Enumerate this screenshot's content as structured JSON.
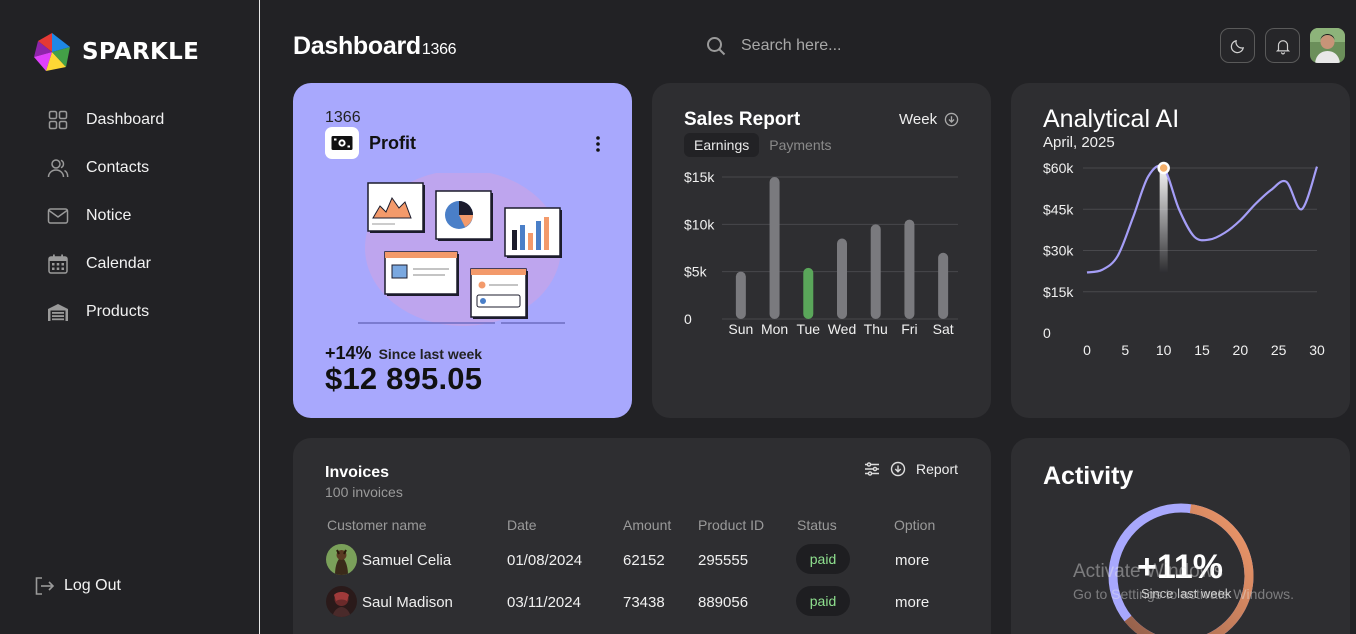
{
  "brand": {
    "name": "SPARKLE"
  },
  "sidebar": {
    "items": [
      {
        "label": "Dashboard",
        "icon": "grid-icon"
      },
      {
        "label": "Contacts",
        "icon": "users-icon"
      },
      {
        "label": "Notice",
        "icon": "mail-icon"
      },
      {
        "label": "Calendar",
        "icon": "calendar-icon"
      },
      {
        "label": "Products",
        "icon": "warehouse-icon"
      }
    ],
    "logout": "Log Out"
  },
  "header": {
    "title": "Dashboard",
    "title_code": "1366",
    "search_placeholder": "Search here..."
  },
  "profit": {
    "code": "1366",
    "title": "Profit",
    "change": "+14%",
    "change_label": "Since last week",
    "amount": "$12 895.05",
    "bg_color": "#a8a8fd"
  },
  "sales": {
    "title": "Sales Report",
    "period": "Week",
    "tabs": [
      "Earnings",
      "Payments"
    ],
    "chart_data": {
      "type": "bar",
      "categories": [
        "Sun",
        "Mon",
        "Tue",
        "Wed",
        "Thu",
        "Fri",
        "Sat"
      ],
      "values": [
        5000,
        15000,
        5400,
        8500,
        10000,
        10500,
        7000
      ],
      "highlight": "Tue",
      "highlight_color": "#5aa65a",
      "bar_color": "#7a7a7e",
      "yticks": [
        {
          "value": 0,
          "label": "0"
        },
        {
          "value": 5000,
          "label": "$5k"
        },
        {
          "value": 10000,
          "label": "$10k"
        },
        {
          "value": 15000,
          "label": "$15k"
        }
      ],
      "ylim": [
        0,
        15000
      ],
      "grid": true
    }
  },
  "analytics": {
    "title": "Analytical AI",
    "date": "April, 2025",
    "chart_data": {
      "type": "line",
      "x": [
        0,
        2,
        4,
        6,
        8,
        10,
        12,
        14,
        16,
        18,
        20,
        22,
        24,
        26,
        28,
        30
      ],
      "values": [
        22000,
        23000,
        28000,
        42000,
        57000,
        60000,
        45000,
        35000,
        34000,
        36500,
        41000,
        47000,
        52000,
        55000,
        45000,
        60500
      ],
      "highlight_x": 10,
      "line_color": "#a59ef7",
      "xticks": [
        0,
        5,
        10,
        15,
        20,
        25,
        30
      ],
      "yticks": [
        {
          "value": 0,
          "label": "0"
        },
        {
          "value": 15000,
          "label": "$15k"
        },
        {
          "value": 30000,
          "label": "$30k"
        },
        {
          "value": 45000,
          "label": "$45k"
        },
        {
          "value": 60000,
          "label": "$60k"
        }
      ],
      "xlim": [
        0,
        30
      ],
      "ylim": [
        0,
        60000
      ],
      "grid": true
    }
  },
  "invoices": {
    "title": "Invoices",
    "count": "100 invoices",
    "report": "Report",
    "columns": [
      "Customer name",
      "Date",
      "Amount",
      "Product ID",
      "Status",
      "Option"
    ],
    "rows": [
      {
        "name": "Samuel Celia",
        "date": "01/08/2024",
        "amount": "62152",
        "product_id": "295555",
        "status": "paid",
        "option": "more"
      },
      {
        "name": "Saul Madison",
        "date": "03/11/2024",
        "amount": "73438",
        "product_id": "889056",
        "status": "paid",
        "option": "more"
      }
    ]
  },
  "activity": {
    "title": "Activity",
    "percent": "+11%",
    "since": "Since last week",
    "ring_fraction": 0.62
  },
  "watermark": {
    "line1": "Activate Windows",
    "line2": "Go to Settings to activate Windows."
  }
}
